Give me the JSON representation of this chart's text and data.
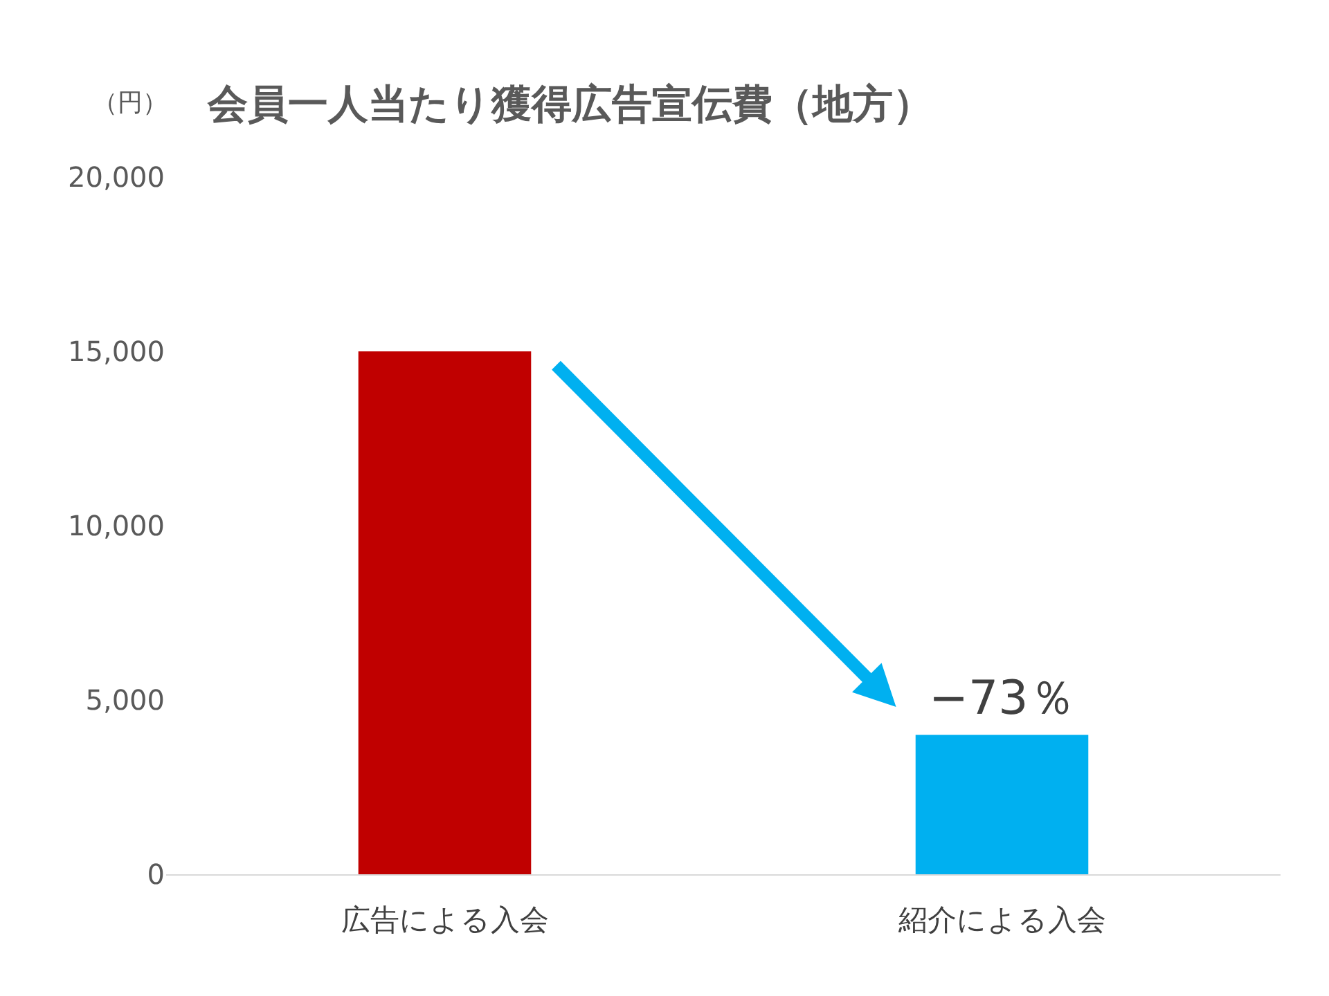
{
  "chart_data": {
    "type": "bar",
    "title": "会員一人当たり獲得広告宣伝費（地方）",
    "ylabel": "（円）",
    "categories": [
      "広告による入会",
      "紹介による入会"
    ],
    "values": [
      15000,
      4000
    ],
    "colors": [
      "#c00000",
      "#00b0f0"
    ],
    "ylim": [
      0,
      20000
    ],
    "yticks": [
      {
        "value": 0,
        "label": "0"
      },
      {
        "value": 5000,
        "label": "5,000"
      },
      {
        "value": 10000,
        "label": "10,000"
      },
      {
        "value": 15000,
        "label": "15,000"
      },
      {
        "value": 20000,
        "label": "20,000"
      }
    ],
    "legend": false,
    "annotations": [
      {
        "text": "−73％",
        "x": "紹介による入会",
        "y": 4000
      }
    ]
  }
}
